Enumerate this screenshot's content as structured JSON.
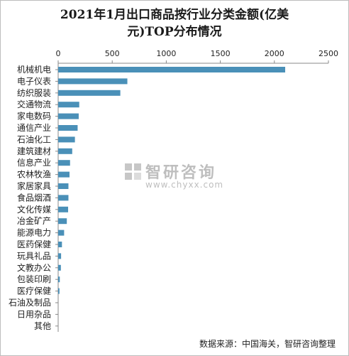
{
  "title_line1": "2021年1月出口商品按行业分类金额(亿美",
  "title_line2": "元)TOP分布情况",
  "source": "数据来源：中国海关，智研咨询整理",
  "watermark": {
    "text": "智研咨询",
    "url": "www.chyxx.com"
  },
  "colors": {
    "bar": "#4a90b8",
    "axis": "#888888",
    "text": "#222222"
  },
  "chart_data": {
    "type": "bar",
    "orientation": "horizontal",
    "title": "2021年1月出口商品按行业分类金额(亿美元)TOP分布情况",
    "categories": [
      "机械机电",
      "电子仪表",
      "纺织服装",
      "交通物流",
      "家电数码",
      "通信产业",
      "石油化工",
      "建筑建材",
      "信息产业",
      "农林牧渔",
      "家居家具",
      "食品烟酒",
      "文化传媒",
      "冶金矿产",
      "能源电力",
      "医药保健",
      "玩具礼品",
      "文教办公",
      "包装印刷",
      "医疗保健",
      "石油及制品",
      "日用杂品",
      "其他"
    ],
    "values": [
      2100,
      640,
      575,
      195,
      190,
      180,
      155,
      130,
      110,
      105,
      95,
      95,
      92,
      80,
      55,
      35,
      27,
      25,
      15,
      12,
      0,
      0,
      0
    ],
    "xlim": [
      0,
      2500
    ],
    "ticks": [
      0,
      500,
      1000,
      1500,
      2000,
      2500
    ],
    "axis_position": "top",
    "grid": false,
    "legend": "none"
  }
}
